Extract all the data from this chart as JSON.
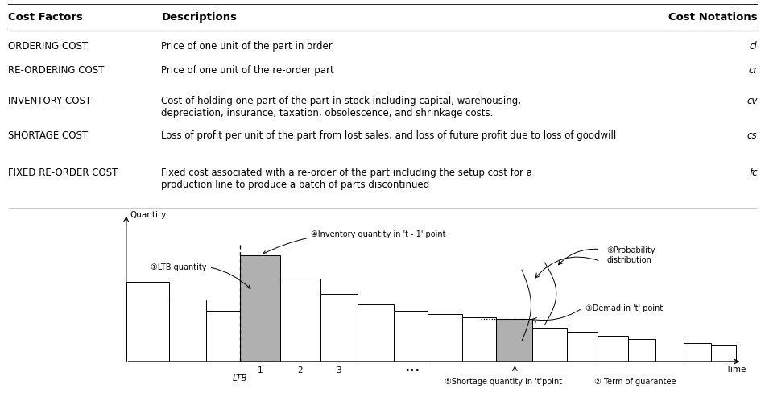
{
  "headers": [
    "Cost Factors",
    "Descriptions",
    "Cost Notations"
  ],
  "rows": [
    {
      "factor": "ORDERING COST",
      "description": "Price of one unit of the part in order",
      "notation": "cl"
    },
    {
      "factor": "RE-ORDERING COST",
      "description": "Price of one unit of the re-order part",
      "notation": "cr"
    },
    {
      "factor": "INVENTORY COST",
      "description": "Cost of holding one part of the part in stock including capital, warehousing,\ndepreciation, insurance, taxation, obsolescence, and shrinkage costs.",
      "notation": "cv"
    },
    {
      "factor": "SHORTAGE COST",
      "description": "Loss of profit per unit of the part from lost sales, and loss of future profit due to loss of goodwill",
      "notation": "cs"
    },
    {
      "factor": "FIXED RE-ORDER COST",
      "description": "Fixed cost associated with a re-order of the part including the setup cost for a\nproduction line to produce a batch of parts discontinued",
      "notation": "fc"
    }
  ],
  "bg_color": "#ffffff",
  "text_color": "#000000",
  "header_fontsize": 9.5,
  "body_fontsize": 8.5
}
